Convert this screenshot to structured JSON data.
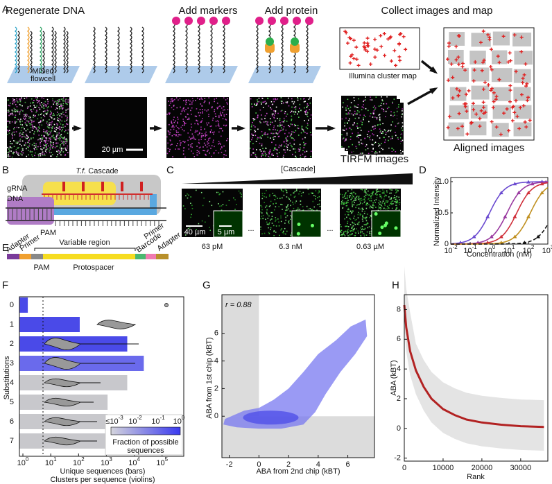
{
  "panel_labels": [
    "A",
    "B",
    "C",
    "D",
    "E",
    "F",
    "G",
    "H"
  ],
  "a": {
    "steps": [
      "Regenerate DNA",
      "Add markers",
      "Add protein",
      "Collect images and map"
    ],
    "flowcell": [
      "MiSeq",
      "flowcell"
    ],
    "scale": "20 µm",
    "cluster_map": "Illumina cluster map",
    "tirfm": "TIRFM images",
    "aligned": "Aligned images"
  },
  "b": {
    "title_italic": "T.f.",
    "title_rest": " Cascade",
    "grna": "gRNA",
    "dna": "DNA",
    "pam": "PAM"
  },
  "c": {
    "axis": "[Cascade]",
    "scale": "40 µm",
    "inset_scale": "5 µm",
    "ellipsis": "...",
    "concentrations": [
      "63 pM",
      "6.3 nM",
      "0.63 µM"
    ]
  },
  "d": {
    "ylabel": "Normalized Intensity",
    "xlabel": "Concentration (nM)",
    "yticks": [
      0,
      0.5,
      {
        "value": 1,
        "label": "1.0"
      }
    ],
    "xticks": [
      {
        "value": -2,
        "label": "10",
        "exp": "-2"
      },
      {
        "value": -1,
        "label": "10",
        "exp": "-1"
      },
      {
        "value": 0,
        "label": "10",
        "exp": "0"
      },
      {
        "value": 1,
        "label": "10",
        "exp": "1"
      },
      {
        "value": 2,
        "label": "10",
        "exp": "2"
      },
      {
        "value": 3,
        "label": "10",
        "exp": "3"
      }
    ]
  },
  "e": {
    "left": [
      "Adapter",
      "Primer"
    ],
    "region": "Variable region",
    "right": [
      "Barcode",
      "Primer",
      "Adapter"
    ],
    "pam": "PAM",
    "protospacer": "Protospacer"
  },
  "g": {
    "annotation": "r = 0.88",
    "ylabel": "ABA from 1st chip (kBT)",
    "xlabel": "ABA from 2nd chip (kBT)",
    "xlim": [
      -2.5,
      7.8
    ],
    "ylim": [
      -3,
      8.8
    ],
    "xticks": [
      -2,
      0,
      2,
      4,
      6
    ],
    "yticks": [
      0,
      2,
      4,
      6
    ]
  },
  "chart_data": [
    {
      "type": "bar",
      "orientation": "horizontal",
      "log": true,
      "ylabel": "Substitutions",
      "xlabel": [
        "Unique sequences (bars)",
        "Clusters per sequence (violins)"
      ],
      "categories": [
        "0",
        "1",
        "2",
        "3",
        "4",
        "5",
        "6",
        "7"
      ],
      "values": [
        1.5,
        110,
        5600,
        22000,
        5600,
        1100,
        1100,
        1100
      ],
      "colors": [
        "#4a4ae8",
        "#4a4ae8",
        "#4a4ae8",
        "#6a6aec",
        "#c8c8cc",
        "#c8c8cc",
        "#c8c8cc",
        "#c8c8cc"
      ],
      "xlim": [
        0.75,
        600000
      ],
      "xticks": [
        {
          "value": 1,
          "label": "10",
          "exp": "0"
        },
        {
          "value": 10,
          "label": "10",
          "exp": "1"
        },
        {
          "value": 100,
          "label": "10",
          "exp": "2"
        },
        {
          "value": 1000,
          "label": "10",
          "exp": "3"
        },
        {
          "value": 10000,
          "label": "10",
          "exp": "4"
        },
        {
          "value": 100000,
          "label": "10",
          "exp": "5"
        }
      ],
      "colorbar": {
        "ticks": [
          {
            "label": "≤10",
            "exp": "-3"
          },
          {
            "label": "10",
            "exp": "-2"
          },
          {
            "label": "10",
            "exp": "-1"
          },
          {
            "label": "10",
            "exp": "0"
          }
        ],
        "title": [
          "Fraction of possible",
          "sequences"
        ]
      }
    },
    {
      "type": "line",
      "ylabel": "ABA (kBT)",
      "xlabel": "Rank",
      "series": [
        {
          "name": "ABA",
          "color": "#b22222",
          "x": [
            0,
            500,
            1500,
            3000,
            5000,
            7000,
            10000,
            13000,
            16000,
            20000,
            25000,
            30000,
            36000
          ],
          "values": [
            8.3,
            6.8,
            5.2,
            3.9,
            2.8,
            2.0,
            1.3,
            0.9,
            0.6,
            0.4,
            0.25,
            0.15,
            0.1
          ]
        }
      ],
      "xlim": [
        0,
        37000
      ],
      "ylim": [
        -2.2,
        9
      ],
      "xticks": [
        0,
        10000,
        20000,
        30000
      ],
      "yticks": [
        -2,
        0,
        2,
        4,
        6,
        8
      ]
    }
  ]
}
